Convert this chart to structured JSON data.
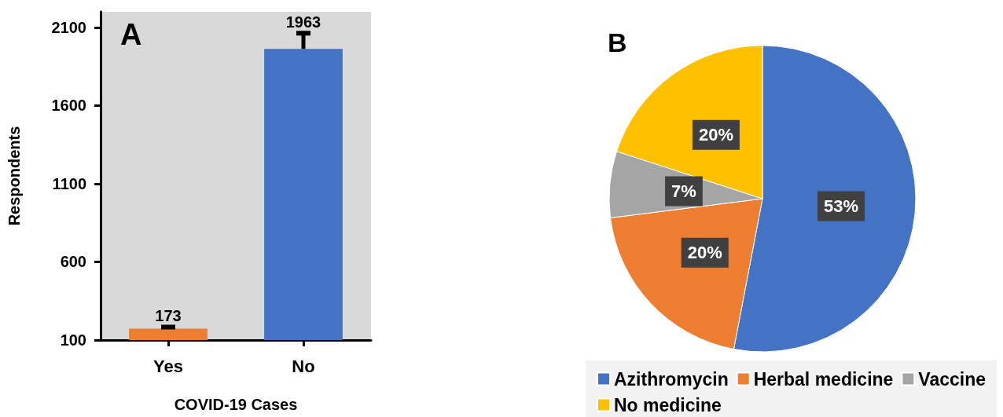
{
  "chart_data": [
    {
      "type": "bar",
      "title": "A",
      "xlabel": "COVID-19 Cases",
      "ylabel": "Respondents",
      "categories": [
        "Yes",
        "No"
      ],
      "values": [
        173,
        1963
      ],
      "colors": [
        "#ed7d31",
        "#4472c4"
      ],
      "errors": [
        [
          173,
          183
        ],
        [
          1963,
          2063
        ]
      ],
      "data_labels": true,
      "ylim": [
        100,
        2200
      ],
      "yticks": [
        100,
        600,
        1100,
        1600,
        2100
      ],
      "grid": false,
      "legend": false
    },
    {
      "type": "pie",
      "title": "B",
      "categories": [
        "Azithromycin",
        "Herbal medicine",
        "Vaccine",
        "No medicine"
      ],
      "values": [
        53,
        20,
        7,
        20
      ],
      "colors": [
        "#4472c4",
        "#ed7d31",
        "#a5a5a5",
        "#ffc000"
      ],
      "value_labels": [
        "53%",
        "20%",
        "7%",
        "20%"
      ],
      "legend": "bottom"
    }
  ]
}
